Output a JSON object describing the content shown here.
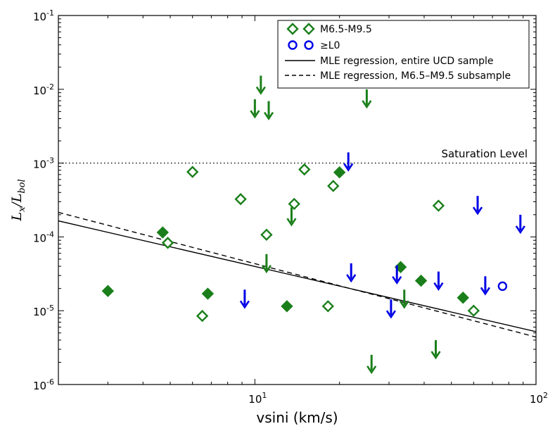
{
  "chart_data": {
    "type": "scatter",
    "xlabel": "vsini (km/s)",
    "ylabel_main": "L",
    "ylabel_sub1": "x",
    "ylabel_sep": "/L",
    "ylabel_sub2": "bol",
    "x_scale": "log",
    "y_scale": "log",
    "xlim": [
      2,
      100
    ],
    "ylim": [
      1e-06,
      0.1
    ],
    "x_ticks": [
      {
        "value": 10,
        "base": "10",
        "exp": "1"
      },
      {
        "value": 100,
        "base": "10",
        "exp": "2"
      }
    ],
    "y_ticks": [
      {
        "value": 1e-06,
        "base": "10",
        "exp": "-6"
      },
      {
        "value": 1e-05,
        "base": "10",
        "exp": "-5"
      },
      {
        "value": 0.0001,
        "base": "10",
        "exp": "-4"
      },
      {
        "value": 0.001,
        "base": "10",
        "exp": "-3"
      },
      {
        "value": 0.01,
        "base": "10",
        "exp": "-2"
      },
      {
        "value": 0.1,
        "base": "10",
        "exp": "-1"
      }
    ],
    "grid": false,
    "legend_position": "top-right",
    "annotation": {
      "text": "Saturation Level",
      "y": 0.001
    },
    "colors": {
      "green": "#1a7f1a",
      "blue": "#0000e6"
    },
    "series": [
      {
        "name": "M6.5-M9.5",
        "marker": "diamond",
        "color": "green",
        "filled": [
          {
            "x": 3.0,
            "y": 1.85e-05
          },
          {
            "x": 4.7,
            "y": 0.000115
          },
          {
            "x": 6.8,
            "y": 1.7e-05
          },
          {
            "x": 13.0,
            "y": 1.15e-05
          },
          {
            "x": 20.0,
            "y": 0.00075
          },
          {
            "x": 33.0,
            "y": 3.9e-05
          },
          {
            "x": 39.0,
            "y": 2.55e-05
          },
          {
            "x": 55.0,
            "y": 1.5e-05
          }
        ],
        "open": [
          {
            "x": 4.9,
            "y": 8.3e-05
          },
          {
            "x": 6.0,
            "y": 0.00076
          },
          {
            "x": 6.5,
            "y": 8.5e-06
          },
          {
            "x": 8.9,
            "y": 0.000325
          },
          {
            "x": 11.0,
            "y": 0.000107
          },
          {
            "x": 13.8,
            "y": 0.00028
          },
          {
            "x": 15.0,
            "y": 0.00082
          },
          {
            "x": 18.2,
            "y": 1.15e-05
          },
          {
            "x": 19.0,
            "y": 0.00049
          },
          {
            "x": 45.0,
            "y": 0.000265
          },
          {
            "x": 60.0,
            "y": 1e-05
          }
        ],
        "upper_limits": [
          {
            "x": 10.0,
            "y": 0.0055
          },
          {
            "x": 10.5,
            "y": 0.0115
          },
          {
            "x": 11.2,
            "y": 0.0052
          },
          {
            "x": 11.0,
            "y": 4.4e-05
          },
          {
            "x": 13.5,
            "y": 0.00019
          },
          {
            "x": 25.0,
            "y": 0.0075
          },
          {
            "x": 26.0,
            "y": 1.9e-06
          },
          {
            "x": 34.0,
            "y": 1.45e-05
          },
          {
            "x": 44.0,
            "y": 3e-06
          }
        ]
      },
      {
        "name": "≥L0",
        "marker": "circle",
        "color": "blue",
        "open": [
          {
            "x": 76.0,
            "y": 2.15e-05
          }
        ],
        "upper_limits": [
          {
            "x": 9.2,
            "y": 1.45e-05
          },
          {
            "x": 21.5,
            "y": 0.00105
          },
          {
            "x": 22.0,
            "y": 3.3e-05
          },
          {
            "x": 30.5,
            "y": 1.07e-05
          },
          {
            "x": 32.0,
            "y": 3.1e-05
          },
          {
            "x": 45.0,
            "y": 2.55e-05
          },
          {
            "x": 62.0,
            "y": 0.00027
          },
          {
            "x": 66.0,
            "y": 2.2e-05
          },
          {
            "x": 88.0,
            "y": 0.00015
          }
        ]
      }
    ],
    "lines": [
      {
        "name": "MLE regression, entire UCD sample",
        "style": "solid",
        "points": [
          {
            "x": 2,
            "y": 0.000165
          },
          {
            "x": 100,
            "y": 5.2e-06
          }
        ]
      },
      {
        "name": "MLE regression, M6.5–M9.5 subsample",
        "style": "dashed",
        "points": [
          {
            "x": 2,
            "y": 0.000215
          },
          {
            "x": 100,
            "y": 4.4e-06
          }
        ]
      },
      {
        "name": "Saturation Level",
        "style": "dotted",
        "points": [
          {
            "x": 2,
            "y": 0.001
          },
          {
            "x": 100,
            "y": 0.001
          }
        ]
      }
    ]
  }
}
